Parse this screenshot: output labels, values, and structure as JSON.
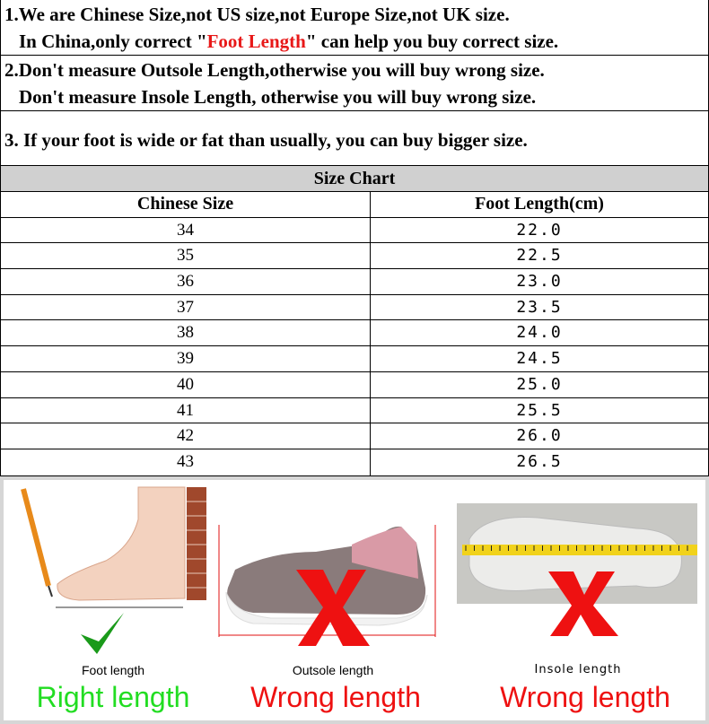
{
  "notes": {
    "n1_line1": "1.We are Chinese Size,not US size,not Europe Size,not UK size.",
    "n1_line2_pre": "In China,only correct \"",
    "n1_line2_highlight": "Foot Length",
    "n1_line2_post": "\" can help you buy correct size.",
    "n2_line1": "2.Don't measure Outsole Length,otherwise you will buy wrong size.",
    "n2_line2": "Don't measure Insole Length, otherwise you will buy wrong size.",
    "n3": "3. If your foot is wide or fat than usually, you can buy bigger size."
  },
  "size_chart": {
    "title": "Size Chart",
    "headers": [
      "Chinese Size",
      "Foot Length(cm)"
    ],
    "rows": [
      [
        "34",
        "22.0"
      ],
      [
        "35",
        "22.5"
      ],
      [
        "36",
        "23.0"
      ],
      [
        "37",
        "23.5"
      ],
      [
        "38",
        "24.0"
      ],
      [
        "39",
        "24.5"
      ],
      [
        "40",
        "25.0"
      ],
      [
        "41",
        "25.5"
      ],
      [
        "42",
        "26.0"
      ],
      [
        "43",
        "26.5"
      ]
    ]
  },
  "guide": {
    "foot": {
      "label": "Foot length",
      "verdict": "Right length",
      "icon": "checkmark-icon"
    },
    "outsole": {
      "label": "Outsole length",
      "verdict": "Wrong length",
      "icon": "x-mark-icon"
    },
    "insole": {
      "label": "Insole length",
      "verdict": "Wrong length",
      "icon": "x-mark-icon"
    },
    "colors": {
      "right": "#22dd22",
      "wrong": "#ee1111",
      "check": "#1a9a1a"
    }
  }
}
